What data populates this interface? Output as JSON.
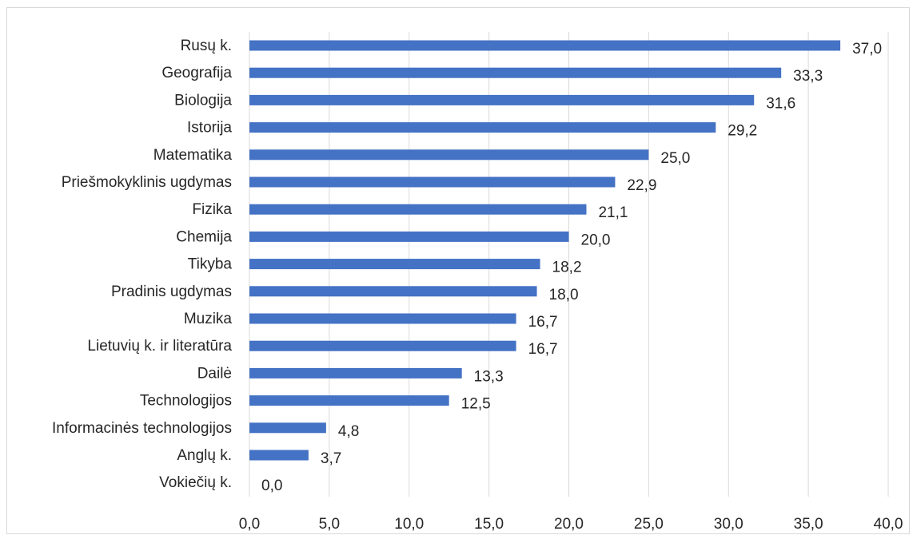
{
  "chart_data": {
    "type": "bar",
    "orientation": "horizontal",
    "categories": [
      "Rusų k.",
      "Geografija",
      "Biologija",
      "Istorija",
      "Matematika",
      "Priešmokyklinis ugdymas",
      "Fizika",
      "Chemija",
      "Tikyba",
      "Pradinis ugdymas",
      "Muzika",
      "Lietuvių k. ir literatūra",
      "Dailė",
      "Technologijos",
      "Informacinės technologijos",
      "Anglų k.",
      "Vokiečių k."
    ],
    "values": [
      37.0,
      33.3,
      31.6,
      29.2,
      25.0,
      22.9,
      21.1,
      20.0,
      18.2,
      18.0,
      16.7,
      16.7,
      13.3,
      12.5,
      4.8,
      3.7,
      0.0
    ],
    "value_labels": [
      "37,0",
      "33,3",
      "31,6",
      "29,2",
      "25,0",
      "22,9",
      "21,1",
      "20,0",
      "18,2",
      "18,0",
      "16,7",
      "16,7",
      "13,3",
      "12,5",
      "4,8",
      "3,7",
      "0,0"
    ],
    "xlim": [
      0,
      40
    ],
    "x_ticks": [
      "0,0",
      "5,0",
      "10,0",
      "15,0",
      "20,0",
      "25,0",
      "30,0",
      "35,0",
      "40,0"
    ],
    "bar_color": "#4472C4",
    "grid": true,
    "title": "",
    "xlabel": "",
    "ylabel": ""
  }
}
